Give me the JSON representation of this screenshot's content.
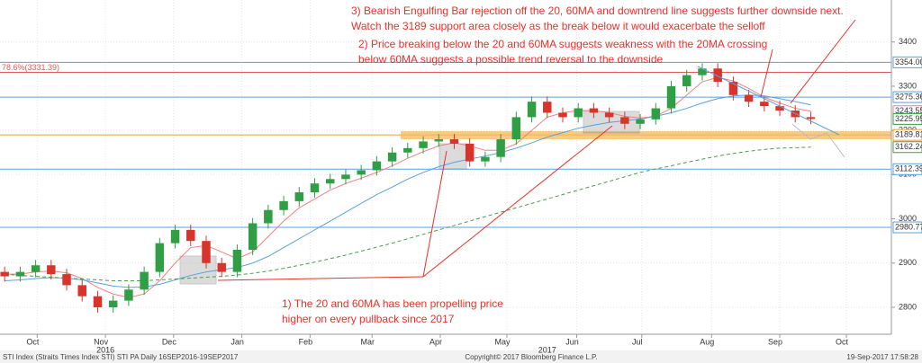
{
  "chart_data": {
    "type": "candlestick",
    "ylim": [
      2739,
      3495
    ],
    "yticks": [
      2800,
      2900,
      3000,
      3100,
      3200,
      3300,
      3400
    ],
    "xlim": [
      -0.3,
      57.2
    ],
    "xticks": [
      {
        "value": 2.1,
        "label": "Oct"
      },
      {
        "value": 6.5,
        "label": "Nov"
      },
      {
        "value": 10.9,
        "label": "Dec"
      },
      {
        "value": 15.3,
        "label": "Jan"
      },
      {
        "value": 19.7,
        "label": "Feb"
      },
      {
        "value": 23.7,
        "label": "Mar"
      },
      {
        "value": 28.1,
        "label": "Apr"
      },
      {
        "value": 32.4,
        "label": "May"
      },
      {
        "value": 36.9,
        "label": "Jun"
      },
      {
        "value": 41.1,
        "label": "Jul"
      },
      {
        "value": 45.6,
        "label": "Aug"
      },
      {
        "value": 50,
        "label": "Sep"
      },
      {
        "value": 54.3,
        "label": "Oct"
      }
    ],
    "year_labels": [
      {
        "value": 6.5,
        "label": "2016"
      },
      {
        "value": 35,
        "label": "2017"
      }
    ],
    "up_color": "#2f9e44",
    "down_color": "#d9342b",
    "open": [
      2880,
      2870,
      2880,
      2895,
      2875,
      2850,
      2825,
      2800,
      2815,
      2840,
      2880,
      2945,
      2975,
      2950,
      2900,
      2880,
      2930,
      2990,
      3020,
      3040,
      3060,
      3080,
      3090,
      3100,
      3110,
      3130,
      3150,
      3160,
      3175,
      3180,
      3170,
      3130,
      3140,
      3180,
      3230,
      3265,
      3240,
      3230,
      3250,
      3240,
      3230,
      3215,
      3225,
      3250,
      3300,
      3325,
      3340,
      3310,
      3280,
      3265,
      3255,
      3245,
      3230
    ],
    "high": [
      2892,
      2892,
      2907,
      2907,
      2887,
      2862,
      2837,
      2827,
      2852,
      2892,
      2957,
      2987,
      2987,
      2962,
      2912,
      2942,
      3002,
      3032,
      3052,
      3072,
      3092,
      3102,
      3112,
      3122,
      3142,
      3162,
      3172,
      3187,
      3192,
      3192,
      3182,
      3152,
      3192,
      3242,
      3277,
      3277,
      3252,
      3262,
      3262,
      3252,
      3242,
      3237,
      3262,
      3312,
      3337,
      3352,
      3352,
      3322,
      3292,
      3277,
      3267,
      3257,
      3242
    ],
    "low": [
      2858,
      2858,
      2868,
      2863,
      2838,
      2813,
      2788,
      2788,
      2803,
      2828,
      2868,
      2933,
      2938,
      2888,
      2868,
      2868,
      2918,
      2978,
      3008,
      3028,
      3048,
      3068,
      3078,
      3088,
      3098,
      3118,
      3138,
      3148,
      3163,
      3158,
      3118,
      3118,
      3128,
      3168,
      3218,
      3228,
      3218,
      3218,
      3228,
      3218,
      3203,
      3203,
      3213,
      3238,
      3288,
      3313,
      3298,
      3268,
      3253,
      3243,
      3233,
      3218,
      3214
    ],
    "close": [
      2870,
      2880,
      2895,
      2875,
      2850,
      2825,
      2800,
      2815,
      2840,
      2880,
      2945,
      2975,
      2950,
      2900,
      2880,
      2930,
      2990,
      3020,
      3040,
      3060,
      3080,
      3090,
      3100,
      3110,
      3130,
      3150,
      3160,
      3175,
      3180,
      3170,
      3130,
      3140,
      3180,
      3230,
      3265,
      3240,
      3230,
      3250,
      3240,
      3230,
      3215,
      3225,
      3250,
      3300,
      3325,
      3340,
      3310,
      3280,
      3265,
      3255,
      3245,
      3230,
      3226
    ],
    "series": [
      {
        "color": "#f08080",
        "dash": false,
        "values": [
          2875,
          2875,
          2880,
          2882,
          2878,
          2865,
          2845,
          2830,
          2822,
          2830,
          2860,
          2900,
          2935,
          2940,
          2925,
          2910,
          2925,
          2960,
          2995,
          3025,
          3045,
          3065,
          3080,
          3092,
          3105,
          3120,
          3137,
          3152,
          3165,
          3172,
          3165,
          3155,
          3155,
          3170,
          3200,
          3230,
          3240,
          3245,
          3245,
          3240,
          3232,
          3228,
          3232,
          3250,
          3280,
          3310,
          3320,
          3312,
          3295,
          3275,
          3262,
          3250,
          3243.55
        ]
      },
      {
        "color": "#5aa0dc",
        "dash": false,
        "values": [
          2860,
          2862,
          2865,
          2867,
          2866,
          2862,
          2855,
          2848,
          2845,
          2846,
          2852,
          2862,
          2872,
          2880,
          2885,
          2890,
          2900,
          2915,
          2935,
          2955,
          2975,
          2995,
          3015,
          3035,
          3055,
          3072,
          3090,
          3105,
          3118,
          3128,
          3135,
          3142,
          3150,
          3160,
          3172,
          3185,
          3195,
          3205,
          3212,
          3218,
          3222,
          3226,
          3232,
          3240,
          3250,
          3262,
          3272,
          3278,
          3280,
          3278,
          3272,
          3265,
          3258
        ]
      },
      {
        "color": "#4c9a4c",
        "dash": true,
        "values": [
          2875,
          2872,
          2870,
          2868,
          2866,
          2864,
          2862,
          2860,
          2860,
          2860,
          2862,
          2864,
          2866,
          2868,
          2870,
          2873,
          2877,
          2882,
          2888,
          2895,
          2902,
          2910,
          2918,
          2927,
          2936,
          2945,
          2955,
          2965,
          2975,
          2985,
          2995,
          3005,
          3015,
          3025,
          3035,
          3045,
          3055,
          3065,
          3075,
          3085,
          3095,
          3105,
          3113,
          3120,
          3128,
          3135,
          3142,
          3148,
          3153,
          3157,
          3160,
          3161,
          3162.24
        ]
      }
    ],
    "levels": [
      {
        "value": 3354,
        "label": "3354.00",
        "color": "#5aa0dc"
      },
      {
        "value": 3275.36,
        "label": "3275.36",
        "color": "#5aa0dc"
      },
      {
        "value": 3189.81,
        "label": "3189.81",
        "color": "#e8a030"
      },
      {
        "value": 3112.39,
        "label": "3112.39",
        "color": "#5aa0dc"
      },
      {
        "value": 2980.77,
        "label": "2980.77",
        "color": "#5aa0dc"
      }
    ],
    "fib_level": {
      "value": 3331.39,
      "label": "78.6%(3331.39)",
      "color": "#e05a5a"
    },
    "price_tags": [
      {
        "value": 3243.55,
        "label": "3243.55",
        "color": "#f08080"
      },
      {
        "value": 3225.95,
        "label": "3225.95",
        "color": "#2f9e44"
      },
      {
        "value": 3162.24,
        "label": "3162.24",
        "color": "#4c9a4c"
      }
    ],
    "annotations": [
      [
        "3) Bearish Engulfing Bar rejection off the 20, 60MA and downtrend line suggests further downside next.",
        "Watch the 3189 support area closely as the break below it would exacerbate the selloff"
      ],
      [
        "2) Price breaking below the 20 and 60MA suggests weakness with the 20MA crossing",
        "below 60MA suggests a possible trend reversal to the downside"
      ],
      [
        "1) The 20 and 60MA has been propelling price",
        "higher on every pullback since 2017"
      ]
    ],
    "footer": [
      "STI Index (Straits Times Index STI) STI PA  Daily 16SEP2016-19SEP2017",
      "Copyright© 2017 Bloomberg Finance L.P.",
      "19-Sep-2017 17:58:28"
    ]
  }
}
